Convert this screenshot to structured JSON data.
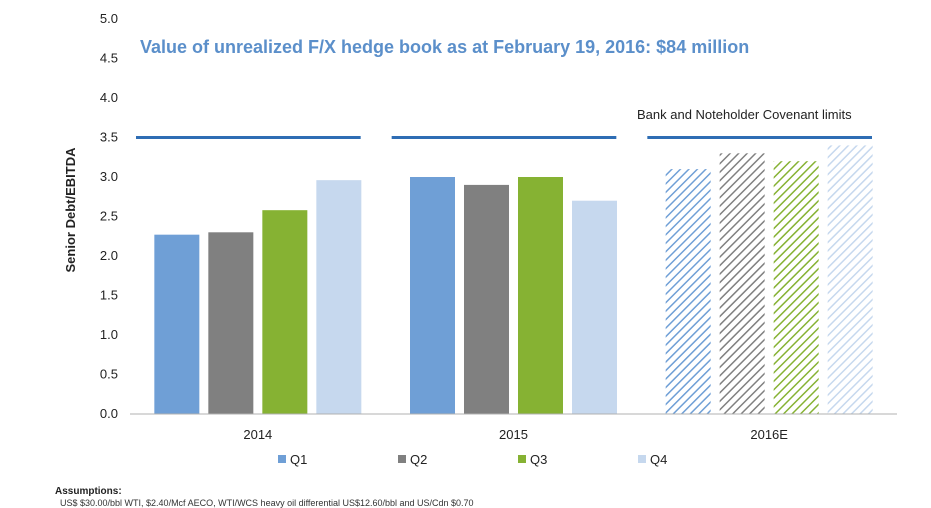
{
  "chart_data": {
    "type": "bar",
    "title": "Value of unrealized F/X hedge book as at February 19, 2016: $84 million",
    "ylabel": "Senior Debt/EBITDA",
    "xlabel": "",
    "ylim": [
      0,
      5.0
    ],
    "yticks": [
      "0.0",
      "0.5",
      "1.0",
      "1.5",
      "2.0",
      "2.5",
      "3.0",
      "3.5",
      "4.0",
      "4.5",
      "5.0"
    ],
    "categories": [
      "2014",
      "2015",
      "2016E"
    ],
    "series": [
      {
        "name": "Q1",
        "values": [
          2.27,
          3.0,
          3.1
        ],
        "color": "#6f9fd6"
      },
      {
        "name": "Q2",
        "values": [
          2.3,
          2.9,
          3.3
        ],
        "color": "#808080"
      },
      {
        "name": "Q3",
        "values": [
          2.58,
          3.0,
          3.2
        ],
        "color": "#86b233"
      },
      {
        "name": "Q4",
        "values": [
          2.96,
          2.7,
          3.4
        ],
        "color": "#c6d8ee"
      }
    ],
    "hatched_categories": [
      "2016E"
    ],
    "covenant_limit": {
      "label": "Bank and Noteholder Covenant limits",
      "value": 3.5,
      "color": "#2e6db4"
    },
    "grid": false,
    "legend": "bottom"
  },
  "footnote": {
    "heading": "Assumptions:",
    "line": "US$ $30.00/bbl WTI, $2.40/Mcf AECO, WTI/WCS heavy oil differential US$12.60/bbl and US/Cdn $0.70"
  }
}
